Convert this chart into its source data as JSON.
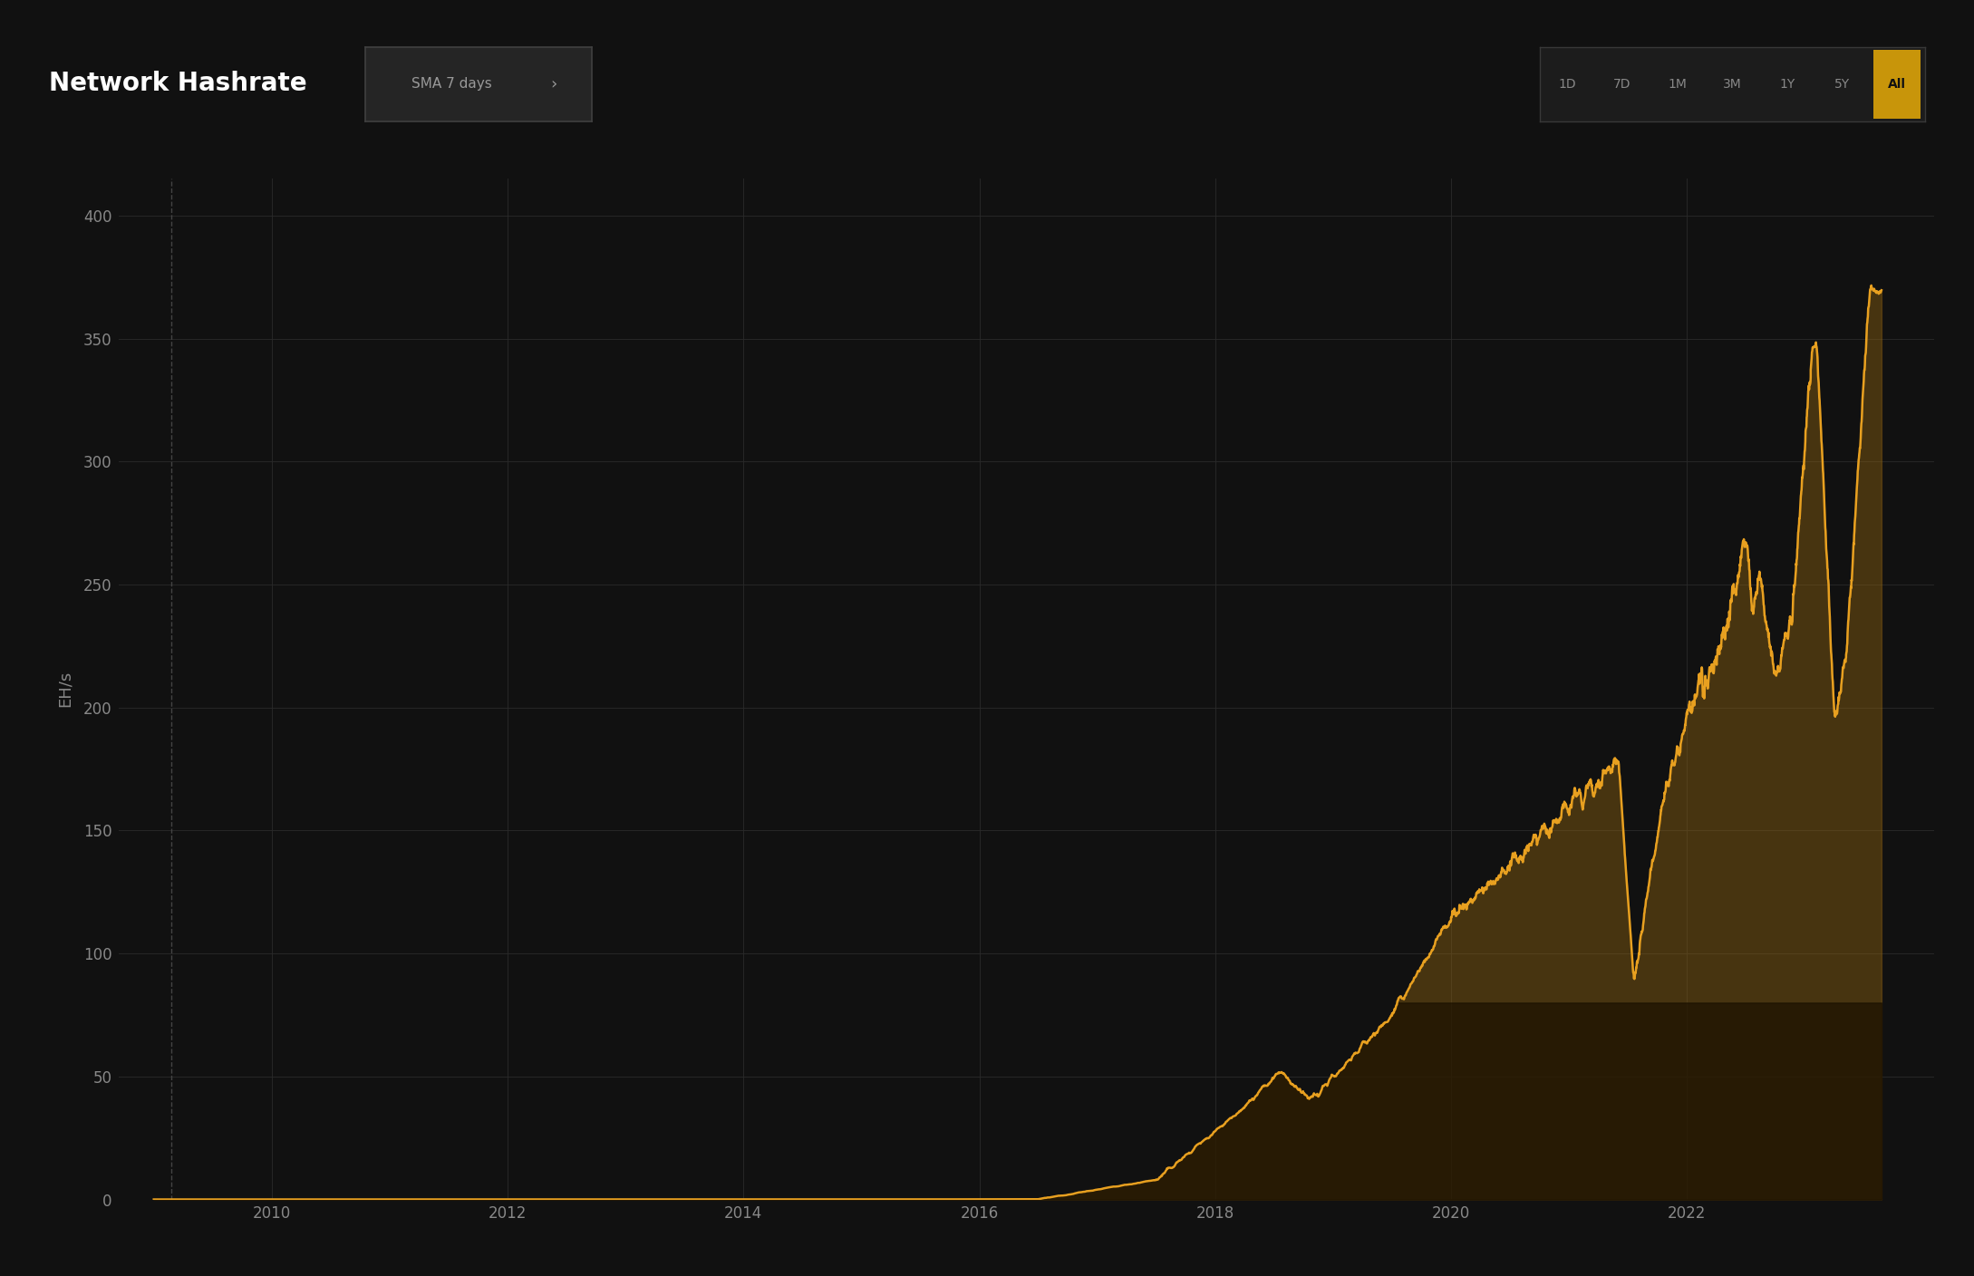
{
  "title": "Network Hashrate",
  "subtitle": "SMA 7 days",
  "ylabel": "EH/s",
  "background_color": "#111111",
  "grid_color": "#2a2a2a",
  "line_color": "#e8a020",
  "yticks": [
    0,
    50,
    100,
    150,
    200,
    250,
    300,
    350,
    400
  ],
  "ylim": [
    0,
    415
  ],
  "xlim_start": 2008.7,
  "xlim_end": 2024.1,
  "xtick_labels": [
    "2010",
    "2012",
    "2014",
    "2016",
    "2018",
    "2020",
    "2022"
  ],
  "xtick_positions": [
    2010,
    2012,
    2014,
    2016,
    2018,
    2020,
    2022
  ],
  "time_buttons": [
    "1D",
    "7D",
    "1M",
    "3M",
    "1Y",
    "5Y",
    "All"
  ],
  "active_button": "All",
  "title_fontsize": 20,
  "axis_fontsize": 13,
  "tick_fontsize": 12,
  "tick_color": "#888888",
  "dashed_vline_x": 2009.15
}
